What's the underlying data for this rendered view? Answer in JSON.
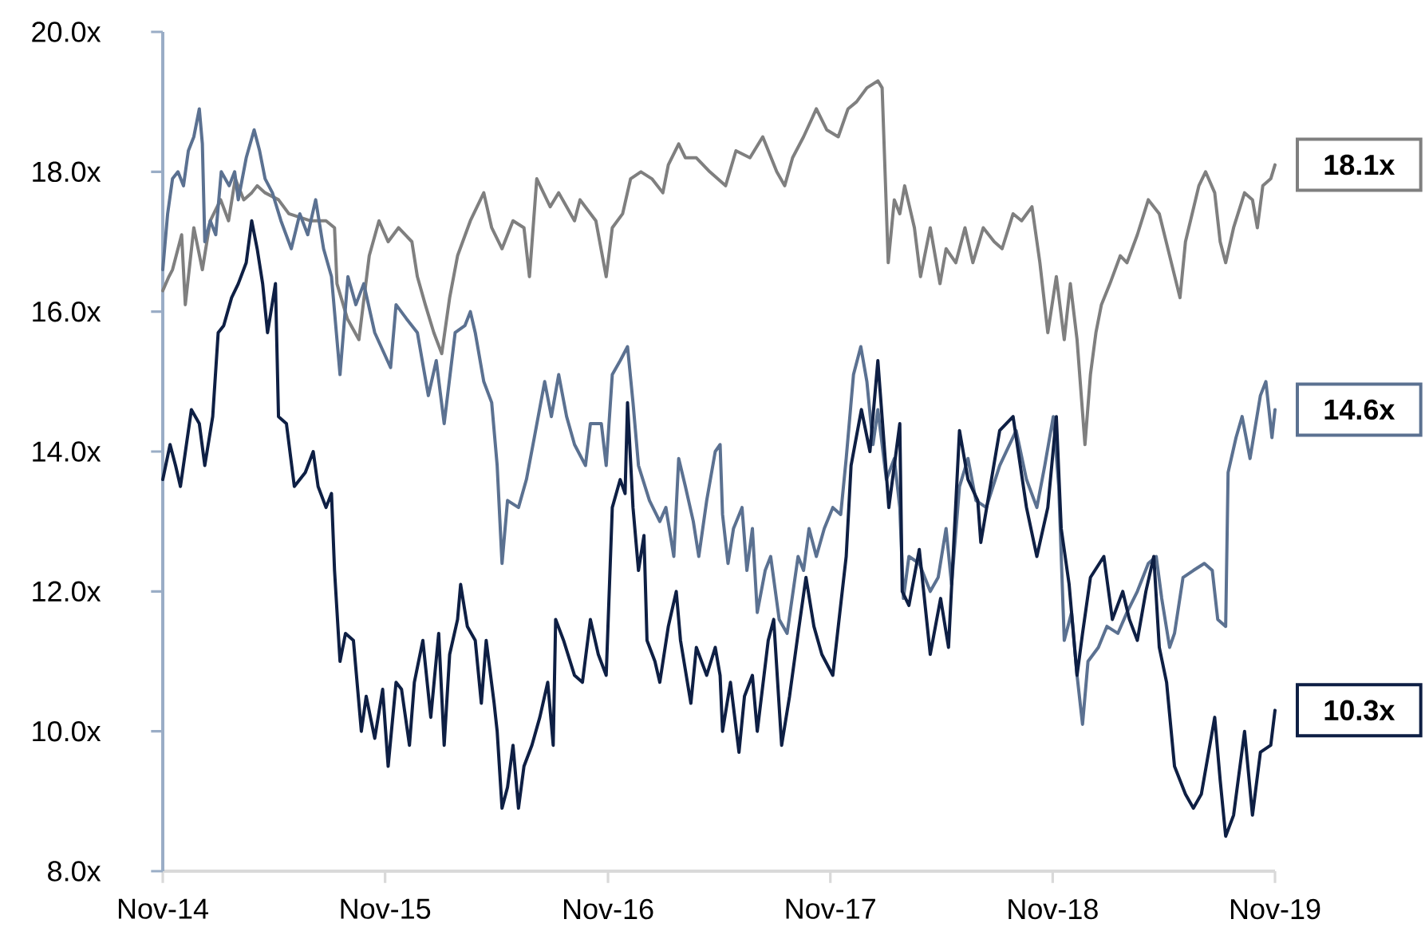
{
  "chart_data": {
    "type": "line",
    "line_style": "solid",
    "xlim": [
      "2014-11-01",
      "2019-11-01"
    ],
    "xticks": [
      {
        "value": "2014-11-01",
        "label": "Nov-14"
      },
      {
        "value": "2015-11-01",
        "label": "Nov-15"
      },
      {
        "value": "2016-11-01",
        "label": "Nov-16"
      },
      {
        "value": "2017-11-01",
        "label": "Nov-17"
      },
      {
        "value": "2018-11-01",
        "label": "Nov-18"
      },
      {
        "value": "2019-11-01",
        "label": "Nov-19"
      }
    ],
    "ylim": [
      8,
      20
    ],
    "yticks": [
      {
        "value": 8,
        "label": "8.0x"
      },
      {
        "value": 10,
        "label": "10.0x"
      },
      {
        "value": 12,
        "label": "12.0x"
      },
      {
        "value": 14,
        "label": "14.0x"
      },
      {
        "value": 16,
        "label": "16.0x"
      },
      {
        "value": 18,
        "label": "18.0x"
      },
      {
        "value": 20,
        "label": "20.0x"
      }
    ],
    "series": [
      {
        "color": "#7f7f7f",
        "x": [
          "2014-11-01",
          "2014-11-11",
          "2014-11-17",
          "2014-12-02",
          "2014-12-08",
          "2014-12-22",
          "2015-01-05",
          "2015-01-18",
          "2015-02-04",
          "2015-02-17",
          "2015-02-28",
          "2015-03-14",
          "2015-03-27",
          "2015-04-05",
          "2015-04-18",
          "2015-05-10",
          "2015-05-27",
          "2015-07-01",
          "2015-07-27",
          "2015-08-10",
          "2015-08-14",
          "2015-08-31",
          "2015-09-19",
          "2015-10-06",
          "2015-10-22",
          "2015-11-06",
          "2015-11-23",
          "2015-12-15",
          "2015-12-24",
          "2016-01-06",
          "2016-01-20",
          "2016-02-02",
          "2016-02-15",
          "2016-02-28",
          "2016-03-20",
          "2016-04-11",
          "2016-04-24",
          "2016-05-11",
          "2016-05-29",
          "2016-06-16",
          "2016-06-25",
          "2016-07-07",
          "2016-07-29",
          "2016-08-12",
          "2016-09-07",
          "2016-09-16",
          "2016-10-12",
          "2016-10-29",
          "2016-11-08",
          "2016-11-25",
          "2016-12-08",
          "2016-12-25",
          "2017-01-12",
          "2017-01-30",
          "2017-02-08",
          "2017-02-25",
          "2017-03-08",
          "2017-03-26",
          "2017-04-17",
          "2017-05-13",
          "2017-05-30",
          "2017-06-22",
          "2017-07-13",
          "2017-08-05",
          "2017-08-18",
          "2017-08-31",
          "2017-09-18",
          "2017-10-09",
          "2017-10-26",
          "2017-11-14",
          "2017-11-30",
          "2017-12-14",
          "2017-12-31",
          "2018-01-18",
          "2018-01-25",
          "2018-02-04",
          "2018-02-14",
          "2018-02-23",
          "2018-03-03",
          "2018-03-19",
          "2018-03-29",
          "2018-04-14",
          "2018-04-30",
          "2018-05-10",
          "2018-05-26",
          "2018-06-10",
          "2018-06-23",
          "2018-07-10",
          "2018-07-28",
          "2018-08-10",
          "2018-08-28",
          "2018-09-11",
          "2018-09-28",
          "2018-10-11",
          "2018-10-24",
          "2018-11-07",
          "2018-11-20",
          "2018-11-30",
          "2018-12-11",
          "2018-12-24",
          "2019-01-02",
          "2019-01-11",
          "2019-01-20",
          "2019-02-03",
          "2019-02-20",
          "2019-03-03",
          "2019-03-20",
          "2019-04-07",
          "2019-04-25",
          "2019-05-12",
          "2019-05-29",
          "2019-06-07",
          "2019-06-29",
          "2019-07-10",
          "2019-07-25",
          "2019-08-03",
          "2019-08-12",
          "2019-08-25",
          "2019-09-12",
          "2019-09-25",
          "2019-10-03",
          "2019-10-12",
          "2019-10-25",
          "2019-11-01"
        ],
        "values": [
          16.3,
          16.5,
          16.6,
          17.1,
          16.1,
          17.2,
          16.6,
          17.3,
          17.6,
          17.3,
          17.9,
          17.6,
          17.7,
          17.8,
          17.7,
          17.6,
          17.4,
          17.3,
          17.3,
          17.2,
          16.4,
          15.9,
          15.6,
          16.8,
          17.3,
          17.0,
          17.2,
          17.0,
          16.5,
          16.1,
          15.7,
          15.4,
          16.2,
          16.8,
          17.3,
          17.7,
          17.2,
          16.9,
          17.3,
          17.2,
          16.5,
          17.9,
          17.5,
          17.7,
          17.3,
          17.6,
          17.3,
          16.5,
          17.2,
          17.4,
          17.9,
          18.0,
          17.9,
          17.7,
          18.1,
          18.4,
          18.2,
          18.2,
          18.0,
          17.8,
          18.3,
          18.2,
          18.5,
          18.0,
          17.8,
          18.2,
          18.5,
          18.9,
          18.6,
          18.5,
          18.9,
          19.0,
          19.2,
          19.3,
          19.2,
          16.7,
          17.6,
          17.4,
          17.8,
          17.2,
          16.5,
          17.2,
          16.4,
          16.9,
          16.7,
          17.2,
          16.7,
          17.2,
          17.0,
          16.9,
          17.4,
          17.3,
          17.5,
          16.7,
          15.7,
          16.5,
          15.6,
          16.4,
          15.6,
          14.1,
          15.1,
          15.7,
          16.1,
          16.4,
          16.8,
          16.7,
          17.1,
          17.6,
          17.4,
          16.8,
          16.2,
          17.0,
          17.8,
          18.0,
          17.7,
          17.0,
          16.7,
          17.2,
          17.7,
          17.6,
          17.2,
          17.8,
          17.9,
          18.1
        ],
        "value_labels": [
          null,
          null,
          null,
          null,
          null,
          null,
          null,
          null,
          null,
          null,
          null,
          null,
          null,
          null,
          null,
          null,
          null,
          null,
          null,
          null,
          null,
          null,
          null,
          null,
          null,
          null,
          null,
          null,
          null,
          null,
          null,
          null,
          null,
          null,
          null,
          null,
          null,
          null,
          null,
          null,
          null,
          null,
          null,
          null,
          null,
          null,
          null,
          null,
          null,
          null,
          null,
          null,
          null,
          null,
          null,
          null,
          null,
          null,
          null,
          null,
          null,
          null,
          null,
          null,
          null,
          null,
          null,
          null,
          null,
          null,
          null,
          null,
          null,
          null,
          null,
          null,
          null,
          null,
          null,
          null,
          null,
          null,
          null,
          null,
          null,
          null,
          null,
          null,
          null,
          null,
          null,
          null,
          null,
          null,
          null,
          null,
          null,
          null,
          null,
          null,
          null,
          null,
          null,
          null,
          null,
          null,
          null,
          null,
          null,
          null,
          null,
          null,
          null,
          null,
          null,
          null,
          null,
          null,
          null,
          null,
          null,
          null,
          null,
          "18.1x"
        ]
      },
      {
        "color": "#5b7191",
        "x": [
          "2014-11-01",
          "2014-11-09",
          "2014-11-17",
          "2014-11-26",
          "2014-12-05",
          "2014-12-13",
          "2014-12-22",
          "2014-12-31",
          "2015-01-05",
          "2015-01-09",
          "2015-01-18",
          "2015-01-27",
          "2015-02-05",
          "2015-02-18",
          "2015-02-27",
          "2015-03-05",
          "2015-03-18",
          "2015-03-31",
          "2015-04-09",
          "2015-04-18",
          "2015-04-30",
          "2015-05-14",
          "2015-05-31",
          "2015-06-14",
          "2015-06-27",
          "2015-07-10",
          "2015-07-23",
          "2015-08-05",
          "2015-08-19",
          "2015-09-01",
          "2015-09-14",
          "2015-09-27",
          "2015-10-15",
          "2015-11-10",
          "2015-11-19",
          "2015-12-06",
          "2015-12-24",
          "2016-01-11",
          "2016-01-24",
          "2016-02-06",
          "2016-02-24",
          "2016-03-11",
          "2016-03-20",
          "2016-03-28",
          "2016-04-11",
          "2016-04-24",
          "2016-05-03",
          "2016-05-11",
          "2016-05-20",
          "2016-06-07",
          "2016-06-20",
          "2016-07-03",
          "2016-07-20",
          "2016-07-31",
          "2016-08-12",
          "2016-08-25",
          "2016-09-07",
          "2016-09-25",
          "2016-10-03",
          "2016-10-21",
          "2016-10-29",
          "2016-11-08",
          "2016-11-21",
          "2016-12-03",
          "2016-12-12",
          "2016-12-21",
          "2017-01-08",
          "2017-01-25",
          "2017-02-04",
          "2017-02-17",
          "2017-02-25",
          "2017-03-08",
          "2017-03-21",
          "2017-03-30",
          "2017-04-12",
          "2017-04-26",
          "2017-05-04",
          "2017-05-08",
          "2017-05-17",
          "2017-05-26",
          "2017-06-09",
          "2017-06-17",
          "2017-06-26",
          "2017-07-04",
          "2017-07-17",
          "2017-07-26",
          "2017-08-09",
          "2017-08-22",
          "2017-09-09",
          "2017-09-18",
          "2017-09-27",
          "2017-10-09",
          "2017-10-22",
          "2017-11-05",
          "2017-11-18",
          "2017-11-27",
          "2017-12-09",
          "2017-12-21",
          "2017-12-31",
          "2018-01-10",
          "2018-01-18",
          "2018-02-01",
          "2018-02-14",
          "2018-02-23",
          "2018-03-01",
          "2018-03-10",
          "2018-03-27",
          "2018-04-14",
          "2018-04-27",
          "2018-05-10",
          "2018-05-19",
          "2018-06-01",
          "2018-06-15",
          "2018-06-28",
          "2018-07-15",
          "2018-08-06",
          "2018-09-02",
          "2018-09-19",
          "2018-10-06",
          "2018-10-19",
          "2018-11-02",
          "2018-11-11",
          "2018-11-20",
          "2018-12-02",
          "2018-12-11",
          "2018-12-20",
          "2018-12-29",
          "2019-01-15",
          "2019-01-29",
          "2019-02-16",
          "2019-03-03",
          "2019-03-20",
          "2019-04-07",
          "2019-04-20",
          "2019-04-29",
          "2019-05-12",
          "2019-05-20",
          "2019-06-03",
          "2019-06-20",
          "2019-07-08",
          "2019-07-21",
          "2019-07-30",
          "2019-08-12",
          "2019-08-16",
          "2019-08-29",
          "2019-09-08",
          "2019-09-21",
          "2019-10-08",
          "2019-10-17",
          "2019-10-27",
          "2019-11-01"
        ],
        "values": [
          16.6,
          17.4,
          17.9,
          18.0,
          17.8,
          18.3,
          18.5,
          18.9,
          18.4,
          17.0,
          17.3,
          17.1,
          18.0,
          17.8,
          18.0,
          17.6,
          18.2,
          18.6,
          18.3,
          17.9,
          17.7,
          17.3,
          16.9,
          17.4,
          17.1,
          17.6,
          16.9,
          16.5,
          15.1,
          16.5,
          16.1,
          16.4,
          15.7,
          15.2,
          16.1,
          15.9,
          15.7,
          14.8,
          15.3,
          14.4,
          15.7,
          15.8,
          16.0,
          15.7,
          15.0,
          14.7,
          13.8,
          12.4,
          13.3,
          13.2,
          13.6,
          14.2,
          15.0,
          14.5,
          15.1,
          14.5,
          14.1,
          13.8,
          14.4,
          14.4,
          13.8,
          15.1,
          15.3,
          15.5,
          14.7,
          13.8,
          13.3,
          13.0,
          13.2,
          12.5,
          13.9,
          13.5,
          13.0,
          12.5,
          13.3,
          14.0,
          14.1,
          13.1,
          12.4,
          12.9,
          13.2,
          12.3,
          12.9,
          11.7,
          12.3,
          12.5,
          11.6,
          11.4,
          12.5,
          12.3,
          12.9,
          12.5,
          12.9,
          13.2,
          13.1,
          13.9,
          15.1,
          15.5,
          15.0,
          14.1,
          14.6,
          13.6,
          13.9,
          13.2,
          11.9,
          12.5,
          12.4,
          12.0,
          12.2,
          12.9,
          12.1,
          13.5,
          13.9,
          13.3,
          13.2,
          13.8,
          14.3,
          13.6,
          13.2,
          13.8,
          14.5,
          13.5,
          11.3,
          11.7,
          10.8,
          10.1,
          11.0,
          11.2,
          11.5,
          11.4,
          11.7,
          12.0,
          12.4,
          12.5,
          11.9,
          11.2,
          11.4,
          12.2,
          12.3,
          12.4,
          12.3,
          11.6,
          11.5,
          13.7,
          14.2,
          14.5,
          13.9,
          14.8,
          15.0,
          14.2,
          14.6
        ],
        "value_labels": [
          null,
          null,
          null,
          null,
          null,
          null,
          null,
          null,
          null,
          null,
          null,
          null,
          null,
          null,
          null,
          null,
          null,
          null,
          null,
          null,
          null,
          null,
          null,
          null,
          null,
          null,
          null,
          null,
          null,
          null,
          null,
          null,
          null,
          null,
          null,
          null,
          null,
          null,
          null,
          null,
          null,
          null,
          null,
          null,
          null,
          null,
          null,
          null,
          null,
          null,
          null,
          null,
          null,
          null,
          null,
          null,
          null,
          null,
          null,
          null,
          null,
          null,
          null,
          null,
          null,
          null,
          null,
          null,
          null,
          null,
          null,
          null,
          null,
          null,
          null,
          null,
          null,
          null,
          null,
          null,
          null,
          null,
          null,
          null,
          null,
          null,
          null,
          null,
          null,
          null,
          null,
          null,
          null,
          null,
          null,
          null,
          null,
          null,
          null,
          null,
          null,
          null,
          null,
          null,
          null,
          null,
          null,
          null,
          null,
          null,
          null,
          null,
          null,
          null,
          null,
          null,
          null,
          null,
          null,
          null,
          null,
          null,
          null,
          null,
          null,
          null,
          null,
          null,
          null,
          null,
          null,
          null,
          null,
          null,
          null,
          null,
          null,
          null,
          null,
          null,
          null,
          null,
          null,
          null,
          null,
          null,
          null,
          null,
          null,
          null,
          "14.6x"
        ]
      },
      {
        "color": "#0e1f44",
        "x": [
          "2014-11-01",
          "2014-11-13",
          "2014-11-22",
          "2014-11-30",
          "2014-12-18",
          "2014-12-31",
          "2015-01-09",
          "2015-01-22",
          "2015-01-31",
          "2015-02-09",
          "2015-02-22",
          "2015-03-05",
          "2015-03-18",
          "2015-03-27",
          "2015-04-05",
          "2015-04-14",
          "2015-04-22",
          "2015-05-05",
          "2015-05-10",
          "2015-05-23",
          "2015-06-05",
          "2015-06-23",
          "2015-07-06",
          "2015-07-14",
          "2015-07-27",
          "2015-08-05",
          "2015-08-10",
          "2015-08-19",
          "2015-08-28",
          "2015-09-10",
          "2015-09-23",
          "2015-10-01",
          "2015-10-15",
          "2015-10-28",
          "2015-11-06",
          "2015-11-19",
          "2015-11-28",
          "2015-12-11",
          "2015-12-19",
          "2016-01-02",
          "2016-01-15",
          "2016-01-28",
          "2016-02-06",
          "2016-02-15",
          "2016-02-28",
          "2016-03-04",
          "2016-03-15",
          "2016-03-28",
          "2016-04-07",
          "2016-04-15",
          "2016-04-28",
          "2016-05-03",
          "2016-05-11",
          "2016-05-20",
          "2016-05-29",
          "2016-06-07",
          "2016-06-16",
          "2016-06-29",
          "2016-07-12",
          "2016-07-25",
          "2016-08-03",
          "2016-08-07",
          "2016-08-20",
          "2016-09-07",
          "2016-09-20",
          "2016-10-03",
          "2016-10-16",
          "2016-10-29",
          "2016-11-08",
          "2016-11-21",
          "2016-11-29",
          "2016-12-03",
          "2016-12-12",
          "2016-12-21",
          "2016-12-30",
          "2017-01-04",
          "2017-01-17",
          "2017-01-25",
          "2017-02-08",
          "2017-02-21",
          "2017-02-28",
          "2017-03-17",
          "2017-03-26",
          "2017-04-12",
          "2017-04-26",
          "2017-05-04",
          "2017-05-08",
          "2017-05-21",
          "2017-06-04",
          "2017-06-13",
          "2017-06-26",
          "2017-07-04",
          "2017-07-22",
          "2017-07-31",
          "2017-08-13",
          "2017-08-26",
          "2017-09-09",
          "2017-09-22",
          "2017-10-05",
          "2017-10-18",
          "2017-11-05",
          "2017-11-14",
          "2017-11-27",
          "2017-12-05",
          "2017-12-22",
          "2018-01-05",
          "2018-01-18",
          "2018-02-05",
          "2018-02-23",
          "2018-02-27",
          "2018-03-10",
          "2018-03-27",
          "2018-04-14",
          "2018-05-01",
          "2018-05-14",
          "2018-06-01",
          "2018-06-15",
          "2018-07-01",
          "2018-07-06",
          "2018-08-06",
          "2018-08-28",
          "2018-09-19",
          "2018-10-06",
          "2018-10-24",
          "2018-11-07",
          "2018-11-15",
          "2018-11-28",
          "2018-12-11",
          "2018-12-20",
          "2019-01-02",
          "2019-01-24",
          "2019-02-07",
          "2019-02-24",
          "2019-03-07",
          "2019-03-20",
          "2019-04-03",
          "2019-04-16",
          "2019-04-25",
          "2019-05-07",
          "2019-05-20",
          "2019-06-07",
          "2019-06-20",
          "2019-07-03",
          "2019-07-25",
          "2019-08-03",
          "2019-08-12",
          "2019-08-25",
          "2019-09-12",
          "2019-09-25",
          "2019-10-08",
          "2019-10-25",
          "2019-11-01"
        ],
        "values": [
          13.6,
          14.1,
          13.8,
          13.5,
          14.6,
          14.4,
          13.8,
          14.5,
          15.7,
          15.8,
          16.2,
          16.4,
          16.7,
          17.3,
          16.9,
          16.4,
          15.7,
          16.4,
          14.5,
          14.4,
          13.5,
          13.7,
          14.0,
          13.5,
          13.2,
          13.4,
          12.3,
          11.0,
          11.4,
          11.3,
          10.0,
          10.5,
          9.9,
          10.6,
          9.5,
          10.7,
          10.6,
          9.8,
          10.7,
          11.3,
          10.2,
          11.4,
          9.8,
          11.1,
          11.6,
          12.1,
          11.5,
          11.3,
          10.4,
          11.3,
          10.4,
          10.0,
          8.9,
          9.2,
          9.8,
          8.9,
          9.5,
          9.8,
          10.2,
          10.7,
          9.8,
          11.6,
          11.3,
          10.8,
          10.7,
          11.6,
          11.1,
          10.8,
          13.2,
          13.6,
          13.4,
          14.7,
          13.2,
          12.3,
          12.8,
          11.3,
          11.0,
          10.7,
          11.5,
          12.0,
          11.3,
          10.4,
          11.2,
          10.8,
          11.2,
          10.8,
          10.0,
          10.7,
          9.7,
          10.5,
          10.8,
          10.0,
          11.3,
          11.6,
          9.8,
          10.5,
          11.4,
          12.2,
          11.5,
          11.1,
          10.8,
          11.5,
          12.5,
          13.8,
          14.6,
          14.0,
          15.3,
          13.2,
          14.4,
          12.0,
          11.8,
          12.6,
          11.1,
          11.9,
          11.2,
          14.3,
          13.6,
          13.3,
          12.7,
          14.3,
          14.5,
          13.2,
          12.5,
          13.2,
          14.5,
          12.9,
          12.1,
          10.8,
          11.4,
          12.2,
          12.5,
          11.6,
          12.0,
          11.6,
          11.3,
          12.0,
          12.5,
          11.2,
          10.7,
          9.5,
          9.1,
          8.9,
          9.1,
          10.2,
          9.3,
          8.5,
          8.8,
          10.0,
          8.8,
          9.7,
          9.8,
          10.3
        ],
        "value_labels": [
          null,
          null,
          null,
          null,
          null,
          null,
          null,
          null,
          null,
          null,
          null,
          null,
          null,
          null,
          null,
          null,
          null,
          null,
          null,
          null,
          null,
          null,
          null,
          null,
          null,
          null,
          null,
          null,
          null,
          null,
          null,
          null,
          null,
          null,
          null,
          null,
          null,
          null,
          null,
          null,
          null,
          null,
          null,
          null,
          null,
          null,
          null,
          null,
          null,
          null,
          null,
          null,
          null,
          null,
          null,
          null,
          null,
          null,
          null,
          null,
          null,
          null,
          null,
          null,
          null,
          null,
          null,
          null,
          null,
          null,
          null,
          null,
          null,
          null,
          null,
          null,
          null,
          null,
          null,
          null,
          null,
          null,
          null,
          null,
          null,
          null,
          null,
          null,
          null,
          null,
          null,
          null,
          null,
          null,
          null,
          null,
          null,
          null,
          null,
          null,
          null,
          null,
          null,
          null,
          null,
          null,
          null,
          null,
          null,
          null,
          null,
          null,
          null,
          null,
          null,
          null,
          null,
          null,
          null,
          null,
          null,
          null,
          null,
          null,
          null,
          null,
          null,
          null,
          null,
          null,
          null,
          null,
          null,
          null,
          null,
          null,
          null,
          null,
          null,
          null,
          null,
          null,
          null,
          null,
          null,
          null,
          null,
          null,
          null,
          null,
          null,
          "10.3x"
        ]
      }
    ]
  }
}
